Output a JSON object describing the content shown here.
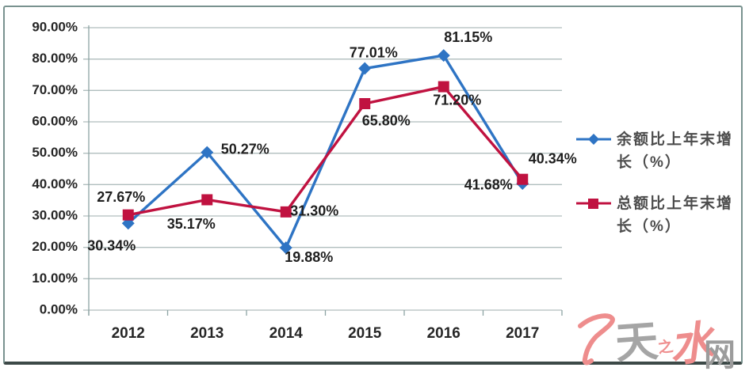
{
  "chart_data": {
    "type": "line",
    "categories": [
      "2012",
      "2013",
      "2014",
      "2015",
      "2016",
      "2017"
    ],
    "series": [
      {
        "name": "余额比上年末增长（%）",
        "legend_lines": [
          "余额比上年末增",
          "长（%）"
        ],
        "marker": "diamond",
        "color": "#2e74c4",
        "values": [
          27.67,
          50.27,
          19.88,
          77.01,
          81.15,
          40.34
        ],
        "labels": [
          "27.67%",
          "50.27%",
          "19.88%",
          "77.01%",
          "81.15%",
          "40.34%"
        ]
      },
      {
        "name": "总额比上年末增长（%）",
        "legend_lines": [
          "总额比上年末增",
          "长（%）"
        ],
        "marker": "square",
        "color": "#c01240",
        "values": [
          30.34,
          35.17,
          31.3,
          65.8,
          71.2,
          41.68
        ],
        "labels": [
          "30.34%",
          "35.17%",
          "31.30%",
          "65.80%",
          "71.20%",
          "41.68%"
        ]
      }
    ],
    "y_axis": {
      "min": 0,
      "max": 90,
      "step": 10,
      "tick_labels": [
        "0.00%",
        "10.00%",
        "20.00%",
        "30.00%",
        "40.00%",
        "50.00%",
        "60.00%",
        "70.00%",
        "80.00%",
        "90.00%"
      ]
    },
    "x_axis": {
      "tick_labels": [
        "2012",
        "2013",
        "2014",
        "2015",
        "2016",
        "2017"
      ]
    },
    "grid": true,
    "legend_position": "right",
    "colors": {
      "gridline": "#b0bebe",
      "axis": "#8da3a3",
      "tick_text": "#262626",
      "data_label_text": "#1f1f1f",
      "legend_text": "#4c4c4c"
    }
  },
  "watermark": {
    "text": "天水网",
    "chars": {
      "tian": "天",
      "shui": "水",
      "wang": "网"
    },
    "flourish_glyph": "之",
    "red": "#ee8d8d",
    "gray": "#9c9c9c"
  }
}
